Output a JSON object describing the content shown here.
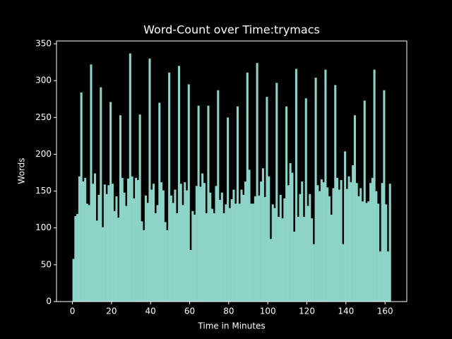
{
  "chart_data": {
    "type": "bar",
    "title": "Word-Count over Time:trymacs",
    "xlabel": "Time in Minutes",
    "ylabel": "Words",
    "color": "#8dd3c7",
    "bar_width": 1,
    "align": "edge",
    "x": [
      0,
      1,
      2,
      3,
      4,
      5,
      6,
      7,
      8,
      9,
      10,
      11,
      12,
      13,
      14,
      15,
      16,
      17,
      18,
      19,
      20,
      21,
      22,
      23,
      24,
      25,
      26,
      27,
      28,
      29,
      30,
      31,
      32,
      33,
      34,
      35,
      36,
      37,
      38,
      39,
      40,
      41,
      42,
      43,
      44,
      45,
      46,
      47,
      48,
      49,
      50,
      51,
      52,
      53,
      54,
      55,
      56,
      57,
      58,
      59,
      60,
      61,
      62,
      63,
      64,
      65,
      66,
      67,
      68,
      69,
      70,
      71,
      72,
      73,
      74,
      75,
      76,
      77,
      78,
      79,
      80,
      81,
      82,
      83,
      84,
      85,
      86,
      87,
      88,
      89,
      90,
      91,
      92,
      93,
      94,
      95,
      96,
      97,
      98,
      99,
      100,
      101,
      102,
      103,
      104,
      105,
      106,
      107,
      108,
      109,
      110,
      111,
      112,
      113,
      114,
      115,
      116,
      117,
      118,
      119,
      120,
      121,
      122,
      123,
      124,
      125,
      126,
      127,
      128,
      129,
      130,
      131,
      132,
      133,
      134,
      135,
      136,
      137,
      138,
      139,
      140,
      141,
      142,
      143,
      144,
      145,
      146,
      147,
      148,
      149,
      150,
      151,
      152,
      153,
      154,
      155,
      156,
      157,
      158,
      159,
      160,
      161,
      162
    ],
    "values": [
      58,
      116,
      119,
      170,
      284,
      163,
      168,
      133,
      131,
      322,
      160,
      174,
      110,
      145,
      291,
      101,
      159,
      146,
      158,
      271,
      160,
      123,
      143,
      114,
      253,
      168,
      148,
      130,
      167,
      337,
      170,
      140,
      168,
      165,
      254,
      109,
      97,
      144,
      134,
      330,
      152,
      160,
      120,
      131,
      270,
      162,
      151,
      108,
      97,
      311,
      144,
      134,
      152,
      120,
      320,
      160,
      131,
      162,
      151,
      295,
      70,
      123,
      118,
      157,
      266,
      156,
      174,
      161,
      120,
      266,
      148,
      126,
      120,
      157,
      287,
      138,
      148,
      120,
      132,
      250,
      127,
      139,
      152,
      133,
      265,
      133,
      152,
      145,
      163,
      311,
      179,
      133,
      133,
      143,
      324,
      144,
      163,
      181,
      142,
      278,
      170,
      85,
      132,
      127,
      297,
      115,
      145,
      113,
      140,
      265,
      158,
      188,
      175,
      95,
      316,
      115,
      146,
      163,
      115,
      276,
      130,
      146,
      113,
      78,
      304,
      158,
      150,
      166,
      162,
      315,
      155,
      143,
      118,
      154,
      294,
      168,
      152,
      165,
      78,
      204,
      153,
      170,
      162,
      185,
      253,
      161,
      143,
      154,
      136,
      273,
      134,
      136,
      161,
      168,
      315,
      150,
      133,
      68,
      161,
      287,
      132,
      68,
      160
    ],
    "xlim": [
      -8.15,
      171.15
    ],
    "ylim": [
      0,
      353.9
    ],
    "xticks": [
      0,
      20,
      40,
      60,
      80,
      100,
      120,
      140,
      160
    ],
    "yticks": [
      0,
      50,
      100,
      150,
      200,
      250,
      300,
      350
    ]
  }
}
